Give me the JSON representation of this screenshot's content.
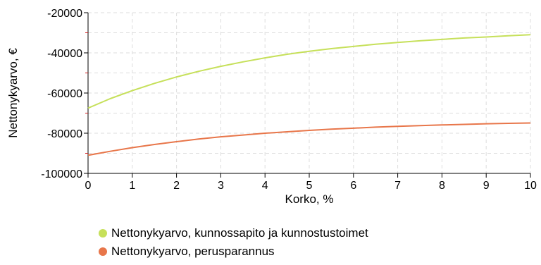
{
  "chart_data": {
    "type": "line",
    "xlabel": "Korko, %",
    "ylabel": "Nettonykyarvo, €",
    "xlim": [
      0,
      10
    ],
    "ylim": [
      -100000,
      -20000
    ],
    "x_ticks": [
      0,
      1,
      2,
      3,
      4,
      5,
      6,
      7,
      8,
      9,
      10
    ],
    "y_ticks": [
      -100000,
      -80000,
      -60000,
      -40000,
      -20000
    ],
    "grid": true,
    "legend_position": "bottom",
    "x": [
      0,
      0.5,
      1,
      1.5,
      2,
      2.5,
      3,
      3.5,
      4,
      4.5,
      5,
      5.5,
      6,
      6.5,
      7,
      7.5,
      8,
      8.5,
      9,
      9.5,
      10
    ],
    "series": [
      {
        "name": "Nettonykyarvo, kunnossapito ja kunnostustoimet",
        "color": "#c6e05a",
        "values": [
          -67500,
          -62800,
          -58800,
          -55200,
          -52000,
          -49200,
          -46700,
          -44500,
          -42500,
          -40700,
          -39200,
          -37900,
          -36800,
          -35700,
          -34800,
          -34000,
          -33300,
          -32600,
          -32100,
          -31500,
          -31000
        ]
      },
      {
        "name": "Nettonykyarvo, perusparannus",
        "color": "#e8764a",
        "values": [
          -91000,
          -89000,
          -87200,
          -85600,
          -84200,
          -82900,
          -81800,
          -80900,
          -80000,
          -79300,
          -78600,
          -78000,
          -77500,
          -77000,
          -76600,
          -76200,
          -75900,
          -75600,
          -75300,
          -75100,
          -74900
        ]
      }
    ]
  }
}
